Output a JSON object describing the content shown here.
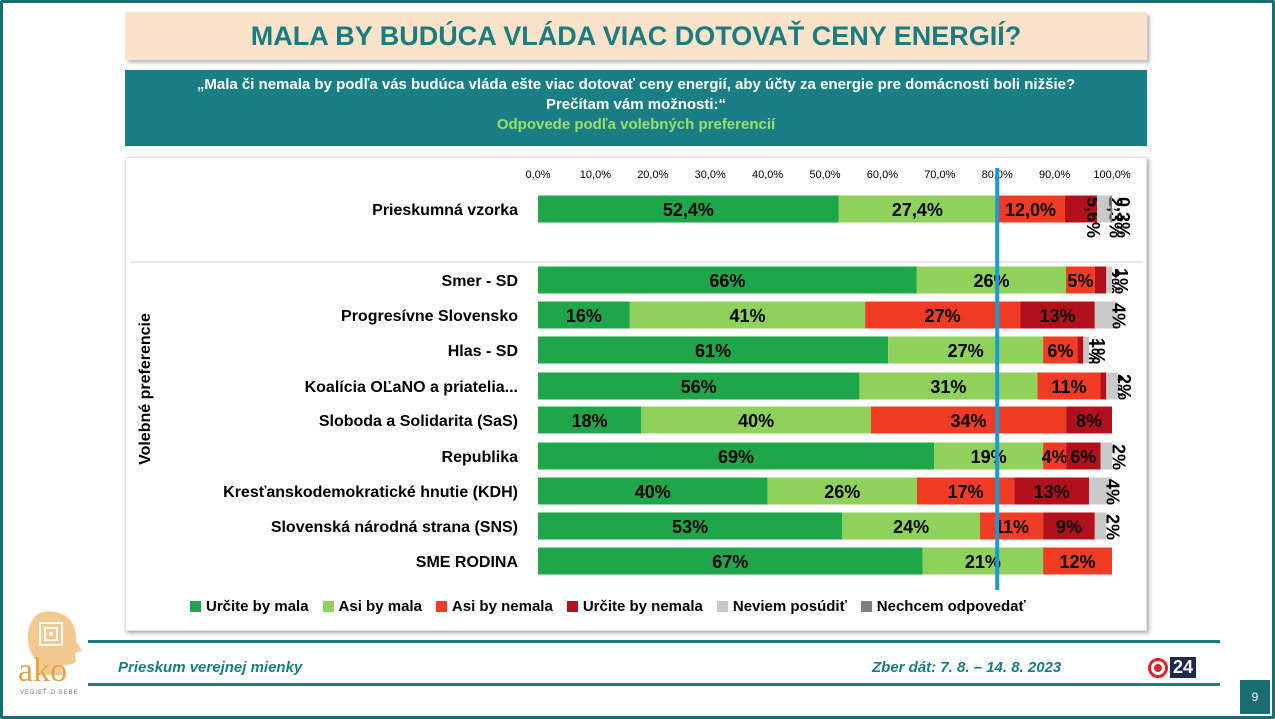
{
  "title": "MALA BY BUDÚCA VLÁDA VIAC DOTOVAŤ CENY ENERGIÍ?",
  "question_line1": "„Mala či nemala by podľa vás budúca vláda ešte viac dotovať ceny energií, aby účty za energie pre domácnosti boli nižšie?",
  "question_line2": "Prečítam vám možnosti:“",
  "question_sub": "Odpovede podľa volebných preferencií",
  "side_label": "Volebné preferencie",
  "footer_left": "Prieskum verejnej mienky",
  "footer_right": "Zber dát: 7. 8. – 14. 8. 2023",
  "logo": {
    "text": "ako",
    "tagline": "VEDIEŤ O SEBE"
  },
  "brand": {
    "num": "24"
  },
  "page_number": "9",
  "colors": {
    "urcite_mala": "#1fa64a",
    "asi_mala": "#8fd15a",
    "asi_nemala": "#f03c24",
    "urcite_nemala": "#b2101c",
    "neviem": "#c9c9c9",
    "nechcem": "#7f7f7f",
    "reference_line": "#1b9ad6"
  },
  "chart_data": {
    "type": "bar",
    "orientation": "horizontal",
    "stacked": true,
    "xlim": [
      0,
      100
    ],
    "xticks": [
      "0,0%",
      "10,0%",
      "20,0%",
      "30,0%",
      "40,0%",
      "50,0%",
      "60,0%",
      "70,0%",
      "80,0%",
      "90,0%",
      "100,0%"
    ],
    "reference_line": 80,
    "legend_position": "bottom",
    "categories": [
      "Prieskumná vzorka",
      "Smer - SD",
      "Progresívne Slovensko",
      "Hlas - SD",
      "Koalícia OĽaNO a priatelia...",
      "Sloboda a Solidarita (SaS)",
      "Republika",
      "Kresťanskodemokratické hnutie (KDH)",
      "Slovenská národná strana (SNS)",
      "SME RODINA"
    ],
    "series": [
      {
        "name": "Určite by mala",
        "color": "#1fa64a",
        "values": [
          52.4,
          66,
          16,
          61,
          56,
          18,
          69,
          40,
          53,
          67
        ],
        "labels": [
          "52,4%",
          "66%",
          "16%",
          "61%",
          "56%",
          "18%",
          "69%",
          "40%",
          "53%",
          "67%"
        ]
      },
      {
        "name": "Asi by mala",
        "color": "#8fd15a",
        "values": [
          27.4,
          26,
          41,
          27,
          31,
          40,
          19,
          26,
          24,
          21
        ],
        "labels": [
          "27,4%",
          "26%",
          "41%",
          "27%",
          "31%",
          "40%",
          "19%",
          "26%",
          "24%",
          "21%"
        ]
      },
      {
        "name": "Asi by nemala",
        "color": "#f03c24",
        "values": [
          12.0,
          5,
          27,
          6,
          11,
          34,
          4,
          17,
          11,
          12
        ],
        "labels": [
          "12,0%",
          "5%",
          "27%",
          "6%",
          "11%",
          "34%",
          "4%",
          "17%",
          "11%",
          "12%"
        ]
      },
      {
        "name": "Určite by nemala",
        "color": "#b2101c",
        "values": [
          5.6,
          2,
          13,
          1,
          1,
          8,
          6,
          13,
          9,
          0
        ],
        "labels": [
          "5,6%",
          "2%",
          "13%",
          "1%",
          "1%",
          "8%",
          "6%",
          "13%",
          "9%",
          ""
        ]
      },
      {
        "name": "Neviem posúdiť",
        "color": "#c9c9c9",
        "values": [
          2.3,
          1,
          4,
          1,
          2,
          0,
          2,
          4,
          2,
          0
        ],
        "labels": [
          "2,3%",
          "1%",
          "4%",
          "1%",
          "2%",
          "",
          "2%",
          "4%",
          "2%",
          ""
        ]
      },
      {
        "name": "Nechcem odpovedať",
        "color": "#7f7f7f",
        "values": [
          0.3,
          0,
          0,
          0,
          0,
          0,
          0,
          0,
          0,
          0
        ],
        "labels": [
          "0,3%",
          "",
          "",
          "",
          "",
          "",
          "",
          "",
          "",
          ""
        ]
      }
    ]
  }
}
